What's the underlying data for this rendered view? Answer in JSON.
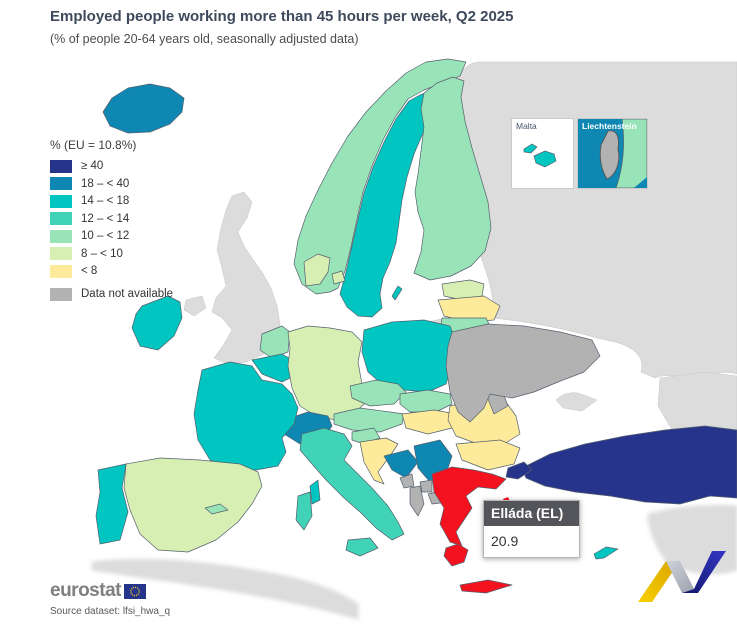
{
  "header": {
    "title": "Employed people working more than 45 hours per week, Q2 2025",
    "subtitle": "(% of people 20-64 years old, seasonally adjusted data)"
  },
  "legend": {
    "title": "% (EU = 10.8%)",
    "items": [
      {
        "label": "≥ 40",
        "key": ">=40",
        "color": "#27348b"
      },
      {
        "label": "18 – < 40",
        "key": "18-<40",
        "color": "#0e87b2"
      },
      {
        "label": "14 – < 18",
        "key": "14-<18",
        "color": "#00c5c0"
      },
      {
        "label": "12 – < 14",
        "key": "12-<14",
        "color": "#41d3b7"
      },
      {
        "label": "10 – < 12",
        "key": "10-<12",
        "color": "#98e3b8"
      },
      {
        "label": "8 – < 10",
        "key": "8-<10",
        "color": "#d8efb3"
      },
      {
        "label": "< 8",
        "key": "<8",
        "color": "#fdea9b"
      }
    ],
    "no_data": {
      "label": "Data not available",
      "key": "na",
      "color": "#b2b2b2"
    }
  },
  "insets": {
    "malta": "Malta",
    "liechtenstein": "Liechtenstein"
  },
  "tooltip": {
    "country": "Elláda (EL)",
    "value": "20.9"
  },
  "footer": {
    "logo_text": "eurostat",
    "source": "Source dataset: lfsi_hwa_q"
  },
  "map": {
    "colors": {
      ">=40": "#27348b",
      "18-<40": "#0e87b2",
      "14-<18": "#00c5c0",
      "12-<14": "#41d3b7",
      "10-<12": "#98e3b8",
      "8-<10": "#d8efb3",
      "<8": "#fdea9b",
      "na": "#b2b2b2",
      "out": "#dcdcdc",
      "highlight": "#f4121e"
    },
    "countries": [
      {
        "id": "IS",
        "name": "Iceland",
        "category": "18-<40"
      },
      {
        "id": "NO",
        "name": "Norway",
        "category": "10-<12"
      },
      {
        "id": "SE",
        "name": "Sweden",
        "category": "14-<18"
      },
      {
        "id": "FI",
        "name": "Finland",
        "category": "10-<12"
      },
      {
        "id": "EE",
        "name": "Estonia",
        "category": "8-<10"
      },
      {
        "id": "LV",
        "name": "Latvia",
        "category": "<8"
      },
      {
        "id": "LT",
        "name": "Lithuania",
        "category": "10-<12"
      },
      {
        "id": "DK",
        "name": "Denmark",
        "category": "8-<10"
      },
      {
        "id": "IE",
        "name": "Ireland",
        "category": "14-<18"
      },
      {
        "id": "NL",
        "name": "Netherlands",
        "category": "10-<12"
      },
      {
        "id": "BE",
        "name": "Belgium",
        "category": "14-<18"
      },
      {
        "id": "LU",
        "name": "Luxembourg",
        "category": "14-<18"
      },
      {
        "id": "DE",
        "name": "Germany",
        "category": "8-<10"
      },
      {
        "id": "PL",
        "name": "Poland",
        "category": "14-<18"
      },
      {
        "id": "CZ",
        "name": "Czechia",
        "category": "10-<12"
      },
      {
        "id": "SK",
        "name": "Slovakia",
        "category": "10-<12"
      },
      {
        "id": "AT",
        "name": "Austria",
        "category": "10-<12"
      },
      {
        "id": "CH",
        "name": "Switzerland",
        "category": "18-<40"
      },
      {
        "id": "FR",
        "name": "France",
        "category": "14-<18"
      },
      {
        "id": "ES",
        "name": "Spain",
        "category": "8-<10"
      },
      {
        "id": "PT",
        "name": "Portugal",
        "category": "14-<18"
      },
      {
        "id": "IT",
        "name": "Italy",
        "category": "12-<14"
      },
      {
        "id": "SI",
        "name": "Slovenia",
        "category": "10-<12"
      },
      {
        "id": "HR",
        "name": "Croatia",
        "category": "<8"
      },
      {
        "id": "BA",
        "name": "Bosnia and Herzegovina",
        "category": "18-<40"
      },
      {
        "id": "RS",
        "name": "Serbia",
        "category": "18-<40"
      },
      {
        "id": "ME",
        "name": "Montenegro",
        "category": "na"
      },
      {
        "id": "XK",
        "name": "Kosovo",
        "category": "na"
      },
      {
        "id": "MK",
        "name": "North Macedonia",
        "category": "na"
      },
      {
        "id": "AL",
        "name": "Albania",
        "category": "na"
      },
      {
        "id": "HU",
        "name": "Hungary",
        "category": "<8"
      },
      {
        "id": "RO",
        "name": "Romania",
        "category": "<8"
      },
      {
        "id": "BG",
        "name": "Bulgaria",
        "category": "<8"
      },
      {
        "id": "MD",
        "name": "Moldova",
        "category": "na"
      },
      {
        "id": "UA",
        "name": "Ukraine",
        "category": "na"
      },
      {
        "id": "EL",
        "name": "Elláda",
        "category": "18-<40",
        "value": "20.9",
        "highlighted": true
      },
      {
        "id": "TR",
        "name": "Türkiye",
        "category": ">=40"
      },
      {
        "id": "CY",
        "name": "Cyprus",
        "category": "14-<18"
      },
      {
        "id": "MT",
        "name": "Malta",
        "category": "14-<18"
      },
      {
        "id": "LI",
        "name": "Liechtenstein",
        "category": "na"
      },
      {
        "id": "UK",
        "name": "United Kingdom",
        "category": "out"
      },
      {
        "id": "RU",
        "name": "Non-EU territory east",
        "category": "out"
      },
      {
        "id": "XC",
        "name": "Non-EU territory caucasus",
        "category": "out"
      },
      {
        "id": "XS",
        "name": "Non-EU territory middle-east",
        "category": "out"
      },
      {
        "id": "XA",
        "name": "Non-EU territory north-africa",
        "category": "out"
      },
      {
        "id": "XR",
        "name": "Non-EU territory crimea",
        "category": "out"
      },
      {
        "id": "XG",
        "name": "Non-EU territory kaliningrad",
        "category": "out"
      }
    ]
  }
}
